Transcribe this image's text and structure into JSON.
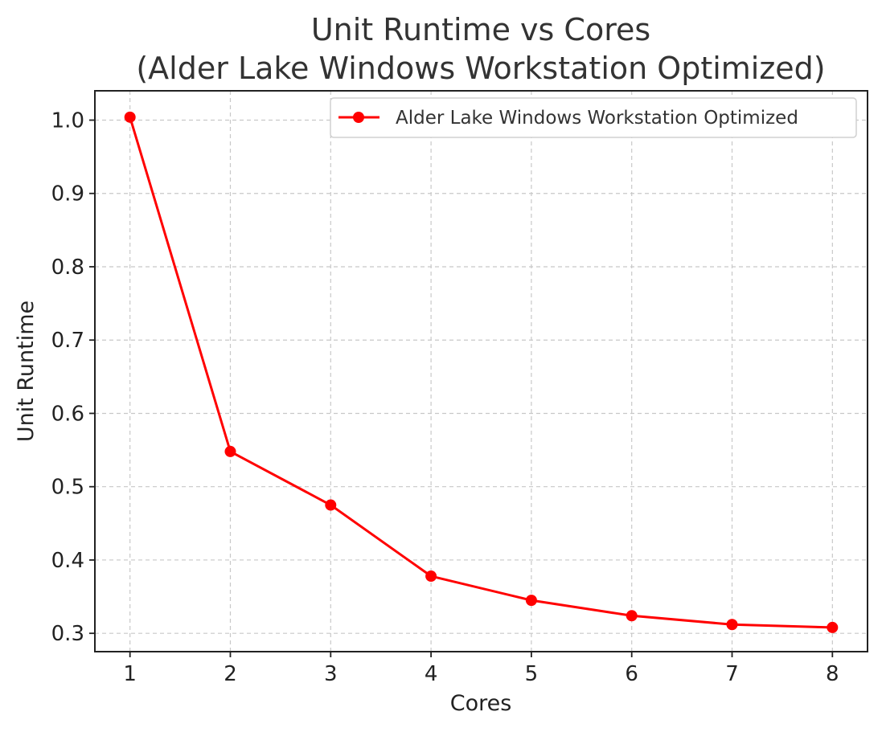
{
  "chart_data": {
    "type": "line",
    "title_lines": [
      "Unit Runtime vs Cores",
      "(Alder Lake Windows Workstation Optimized)"
    ],
    "xlabel": "Cores",
    "ylabel": "Unit Runtime",
    "x": [
      1,
      2,
      3,
      4,
      5,
      6,
      7,
      8
    ],
    "x_ticks": [
      "1",
      "2",
      "3",
      "4",
      "5",
      "6",
      "7",
      "8"
    ],
    "y_ticks": [
      "0.3",
      "0.4",
      "0.5",
      "0.6",
      "0.7",
      "0.8",
      "0.9",
      "1.0"
    ],
    "y_tick_values": [
      0.3,
      0.4,
      0.5,
      0.6,
      0.7,
      0.8,
      0.9,
      1.0
    ],
    "xlim": [
      0.65,
      8.35
    ],
    "ylim": [
      0.275,
      1.04
    ],
    "grid": true,
    "legend_position": "top-right",
    "series": [
      {
        "name": "Alder Lake Windows Workstation Optimized",
        "color": "#ff0000",
        "marker": "circle",
        "values": [
          1.004,
          0.548,
          0.475,
          0.378,
          0.345,
          0.324,
          0.312,
          0.308
        ]
      }
    ]
  }
}
